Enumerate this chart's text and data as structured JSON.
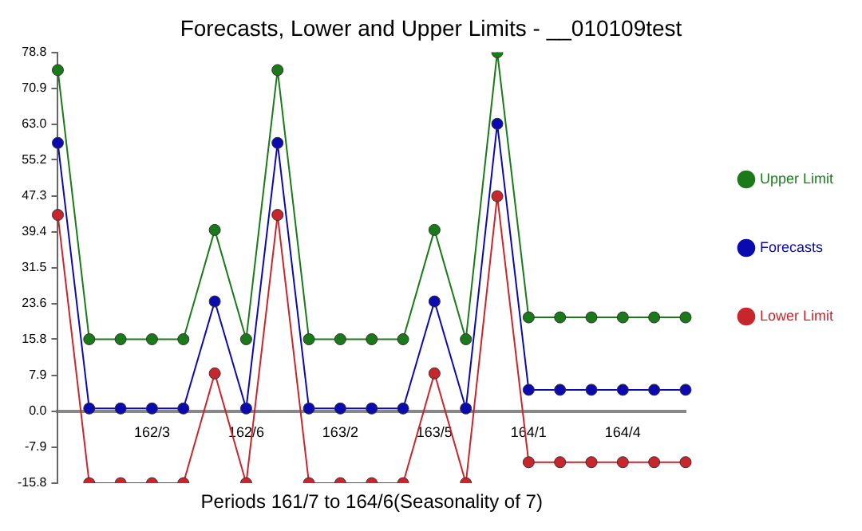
{
  "chart_data": {
    "type": "line",
    "title": "Forecasts, Lower and Upper Limits - __010109test",
    "xlabel": "Periods 161/7 to 164/6(Seasonality of 7)",
    "categories": [
      null,
      null,
      null,
      "162/3",
      null,
      null,
      "162/6",
      null,
      null,
      "163/2",
      null,
      null,
      "163/5",
      null,
      null,
      "164/1",
      null,
      null,
      "164/4",
      null,
      null
    ],
    "series": [
      {
        "name": "Upper Limit",
        "color": "#1a7a1a",
        "values": [
          74.9,
          15.8,
          15.8,
          15.8,
          15.8,
          39.8,
          15.8,
          74.9,
          15.8,
          15.8,
          15.8,
          15.8,
          39.8,
          15.8,
          78.8,
          20.6,
          20.6,
          20.6,
          20.6,
          20.6,
          20.6
        ]
      },
      {
        "name": "Forecasts",
        "color": "#0a0ab0",
        "values": [
          58.9,
          0.6,
          0.6,
          0.6,
          0.6,
          24.1,
          0.6,
          58.9,
          0.6,
          0.6,
          0.6,
          0.6,
          24.1,
          0.6,
          63.1,
          4.7,
          4.7,
          4.7,
          4.7,
          4.7,
          4.7
        ]
      },
      {
        "name": "Lower Limit",
        "color": "#c8262c",
        "values": [
          43.1,
          -15.8,
          -15.8,
          -15.8,
          -15.8,
          8.3,
          -15.8,
          43.1,
          -15.8,
          -15.8,
          -15.8,
          -15.8,
          8.3,
          -15.8,
          47.2,
          -11.2,
          -11.2,
          -11.2,
          -11.2,
          -11.2,
          -11.2
        ]
      }
    ],
    "ylim": [
      -15.8,
      78.8
    ],
    "yticks": [
      -15.8,
      -7.9,
      {
        "value": 0,
        "label": "0.0"
      },
      7.9,
      15.8,
      23.6,
      31.5,
      39.4,
      47.3,
      55.2,
      {
        "value": 63,
        "label": "63.0"
      },
      70.9,
      78.8
    ],
    "grid": false,
    "legend": "right",
    "marker": "circle",
    "line_style": "solid"
  }
}
